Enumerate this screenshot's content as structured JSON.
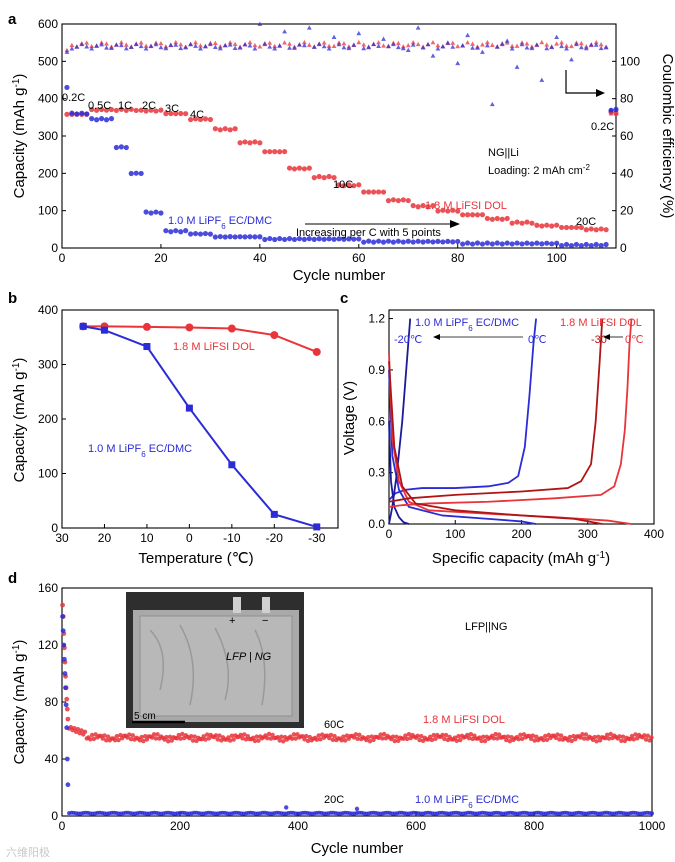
{
  "figure": {
    "watermark": "六维阳极",
    "panels": [
      {
        "label": "a",
        "chart_data": {
          "type": "scatter",
          "xlabel": "Cycle number",
          "ylabel": "Capacity (mAh g⁻¹)",
          "ylabel_base": "Capacity (mAh g",
          "ylabel_sup": "-1",
          "ylabel_end": ")",
          "y2label": "Coulombic efficiency (%)",
          "xlim": [
            0,
            112
          ],
          "ylim": [
            0,
            600
          ],
          "y2lim": [
            0,
            120
          ],
          "xticks": [
            0,
            20,
            40,
            60,
            80,
            100
          ],
          "yticks": [
            0,
            100,
            200,
            300,
            400,
            500,
            600
          ],
          "y2ticks": [
            0,
            20,
            40,
            60,
            80,
            100
          ],
          "rate_labels": [
            "0.2C",
            "0.5C",
            "1C",
            "2C",
            "3C",
            "4C",
            "10C",
            "20C",
            "0.2C"
          ],
          "cell_label": "NG||Li",
          "loading_label": "Loading: 2 mAh cm",
          "loading_sup": "-2",
          "arrow_label": "Increasing per C with 5 points",
          "series": [
            {
              "name": "1.8 M LiFSI DOL",
              "color": "#e8343a",
              "axis": "capacity",
              "steps": [
                [
                  1,
                  5,
                  358
                ],
                [
                  6,
                  10,
                  370
                ],
                [
                  11,
                  15,
                  370
                ],
                [
                  16,
                  20,
                  368
                ],
                [
                  21,
                  25,
                  360
                ],
                [
                  26,
                  30,
                  345
                ],
                [
                  31,
                  35,
                  318
                ],
                [
                  36,
                  40,
                  283
                ],
                [
                  41,
                  45,
                  258
                ],
                [
                  46,
                  50,
                  213
                ],
                [
                  51,
                  55,
                  190
                ],
                [
                  56,
                  60,
                  168
                ],
                [
                  61,
                  65,
                  150
                ],
                [
                  66,
                  70,
                  128
                ],
                [
                  71,
                  75,
                  112
                ],
                [
                  76,
                  80,
                  100
                ],
                [
                  81,
                  85,
                  89
                ],
                [
                  86,
                  90,
                  78
                ],
                [
                  91,
                  95,
                  68
                ],
                [
                  96,
                  100,
                  60
                ],
                [
                  101,
                  105,
                  55
                ],
                [
                  106,
                  110,
                  50
                ],
                [
                  111,
                  112,
                  362
                ]
              ]
            },
            {
              "name": "1.0 M LiPF6 EC/DMC",
              "name_base": "1.0 M LiPF",
              "name_sub": "6",
              "name_end": " EC/DMC",
              "color": "#2b2bd8",
              "axis": "capacity",
              "steps": [
                [
                  1,
                  1,
                  430
                ],
                [
                  2,
                  5,
                  360
                ],
                [
                  6,
                  10,
                  345
                ],
                [
                  11,
                  13,
                  270
                ],
                [
                  14,
                  16,
                  200
                ],
                [
                  17,
                  20,
                  95
                ],
                [
                  21,
                  25,
                  45
                ],
                [
                  26,
                  30,
                  38
                ],
                [
                  31,
                  40,
                  30
                ],
                [
                  41,
                  60,
                  24
                ],
                [
                  61,
                  80,
                  17
                ],
                [
                  81,
                  100,
                  12
                ],
                [
                  101,
                  110,
                  8
                ],
                [
                  111,
                  112,
                  370
                ]
              ]
            },
            {
              "name": "1.8 M LiFSI DOL CE",
              "color": "#e8343a",
              "axis": "efficiency",
              "baseline": 109
            },
            {
              "name": "1.0 M LiPF6 EC/DMC CE",
              "color": "#2b2bd8",
              "axis": "efficiency",
              "baseline": 108,
              "outliers": [
                [
                  40,
                  120
                ],
                [
                  45,
                  116
                ],
                [
                  50,
                  118
                ],
                [
                  55,
                  113
                ],
                [
                  60,
                  115
                ],
                [
                  65,
                  112
                ],
                [
                  70,
                  106
                ],
                [
                  72,
                  118
                ],
                [
                  75,
                  103
                ],
                [
                  78,
                  110
                ],
                [
                  80,
                  99
                ],
                [
                  82,
                  114
                ],
                [
                  85,
                  105
                ],
                [
                  87,
                  77
                ],
                [
                  90,
                  111
                ],
                [
                  92,
                  97
                ],
                [
                  95,
                  107
                ],
                [
                  97,
                  90
                ],
                [
                  100,
                  113
                ],
                [
                  103,
                  101
                ],
                [
                  107,
                  109
                ]
              ]
            }
          ]
        }
      },
      {
        "label": "b",
        "chart_data": {
          "type": "line",
          "xlabel": "Temperature (℃)",
          "ylabel": "Capacity (mAh g⁻¹)",
          "ylabel_base": "Capacity (mAh g",
          "ylabel_sup": "-1",
          "ylabel_end": ")",
          "xlim": [
            30,
            -35
          ],
          "ylim": [
            0,
            400
          ],
          "xticks": [
            30,
            20,
            10,
            0,
            -10,
            -20,
            -30
          ],
          "yticks": [
            0,
            100,
            200,
            300,
            400
          ],
          "x": [
            25,
            20,
            10,
            0,
            -10,
            -20,
            -30
          ],
          "series": [
            {
              "name": "1.8 M LiFSI DOL",
              "color": "#e8343a",
              "values": [
                370,
                370,
                369,
                368,
                366,
                354,
                323
              ]
            },
            {
              "name": "1.0 M LiPF6 EC/DMC",
              "name_base": "1.0 M LiPF",
              "name_sub": "6",
              "name_end": " EC/DMC",
              "color": "#2b2bd8",
              "values": [
                370,
                363,
                333,
                220,
                116,
                25,
                2
              ]
            }
          ]
        }
      },
      {
        "label": "c",
        "chart_data": {
          "type": "line",
          "xlabel": "Specific capacity (mAh g⁻¹)",
          "xlabel_base": "Specific capacity (mAh g",
          "xlabel_sup": "-1",
          "xlabel_end": ")",
          "ylabel": "Voltage (V)",
          "xlim": [
            0,
            400
          ],
          "ylim": [
            0,
            1.25
          ],
          "xticks": [
            0,
            100,
            200,
            300,
            400
          ],
          "yticks": [
            0.0,
            0.3,
            0.6,
            0.9,
            1.2
          ],
          "legend": [
            {
              "name": "1.0 M LiPF6 EC/DMC",
              "name_base": "1.0 M LiPF",
              "name_sub": "6",
              "name_end": " EC/DMC",
              "color": "#2b2bd8"
            },
            {
              "name": "1.8 M LiFSI DOL",
              "color": "#e8343a"
            }
          ],
          "temperature_labels": [
            {
              "text": "-20℃",
              "color": "#2b2bd8"
            },
            {
              "text": "0℃",
              "color": "#2b2bd8"
            },
            {
              "text": "-30",
              "color": "#b01515"
            },
            {
              "text": "0℃",
              "color": "#e8343a"
            }
          ],
          "series": [
            {
              "name": "LiPF6 0℃ charge",
              "color": "#2b2bd8",
              "x": [
                0,
                10,
                25,
                50,
                100,
                150,
                180,
                195,
                205,
                212,
                218,
                222
              ],
              "y": [
                0.14,
                0.18,
                0.2,
                0.21,
                0.21,
                0.22,
                0.24,
                0.28,
                0.45,
                0.75,
                1.05,
                1.2
              ]
            },
            {
              "name": "LiPF6 0℃ discharge",
              "color": "#2b2bd8",
              "x": [
                0,
                5,
                15,
                30,
                80,
                150,
                200,
                222
              ],
              "y": [
                0.9,
                0.4,
                0.2,
                0.1,
                0.05,
                0.03,
                0.015,
                0.0
              ]
            },
            {
              "name": "LiPF6 -20℃ charge",
              "color": "#1a1a9a",
              "x": [
                0,
                5,
                12,
                20,
                25,
                28,
                32
              ],
              "y": [
                0.0,
                0.1,
                0.3,
                0.6,
                0.85,
                1.0,
                1.2
              ]
            },
            {
              "name": "LiPF6 -20℃ discharge",
              "color": "#1a1a9a",
              "x": [
                0,
                3,
                8,
                15,
                22,
                30
              ],
              "y": [
                0.6,
                0.25,
                0.1,
                0.04,
                0.01,
                0.0
              ]
            },
            {
              "name": "LiFSI 0℃ charge",
              "color": "#e8343a",
              "x": [
                0,
                20,
                60,
                150,
                250,
                320,
                340,
                350,
                356,
                360,
                363,
                366
              ],
              "y": [
                0.1,
                0.11,
                0.12,
                0.13,
                0.15,
                0.17,
                0.22,
                0.35,
                0.55,
                0.8,
                1.05,
                1.2
              ]
            },
            {
              "name": "LiFSI 0℃ discharge",
              "color": "#e8343a",
              "x": [
                0,
                5,
                15,
                30,
                60,
                150,
                250,
                330,
                366
              ],
              "y": [
                1.0,
                0.5,
                0.25,
                0.13,
                0.08,
                0.06,
                0.04,
                0.02,
                0.0
              ]
            },
            {
              "name": "LiFSI -30℃ charge",
              "color": "#b01515",
              "x": [
                0,
                30,
                100,
                200,
                270,
                290,
                305,
                312,
                318,
                322
              ],
              "y": [
                0.13,
                0.15,
                0.17,
                0.19,
                0.21,
                0.25,
                0.35,
                0.6,
                0.95,
                1.2
              ]
            },
            {
              "name": "LiFSI -30℃ discharge",
              "color": "#b01515",
              "x": [
                0,
                8,
                20,
                40,
                100,
                200,
                280,
                322
              ],
              "y": [
                0.95,
                0.45,
                0.22,
                0.12,
                0.08,
                0.05,
                0.03,
                0.0
              ]
            }
          ]
        }
      },
      {
        "label": "d",
        "chart_data": {
          "type": "scatter",
          "xlabel": "Cycle number",
          "ylabel": "Capacity (mAh g⁻¹)",
          "ylabel_base": "Capacity (mAh g",
          "ylabel_sup": "-1",
          "ylabel_end": ")",
          "xlim": [
            0,
            1000
          ],
          "ylim": [
            0,
            160
          ],
          "xticks": [
            0,
            200,
            400,
            600,
            800,
            1000
          ],
          "yticks": [
            0,
            40,
            80,
            120,
            160
          ],
          "cell_label": "LFP||NG",
          "rate_labels": [
            "60C",
            "20C"
          ],
          "inset": {
            "scale_bar": "5 cm",
            "plus_sign": "+",
            "minus_sign": "−",
            "handwriting": "LFP | NG"
          },
          "series": [
            {
              "name": "1.8 M LiFSI DOL",
              "color": "#e8343a",
              "initial": [
                [
                  1,
                  148
                ],
                [
                  2,
                  140
                ],
                [
                  3,
                  128
                ],
                [
                  4,
                  118
                ],
                [
                  5,
                  108
                ],
                [
                  6,
                  98
                ],
                [
                  7,
                  90
                ],
                [
                  8,
                  82
                ],
                [
                  9,
                  75
                ],
                [
                  10,
                  68
                ]
              ],
              "plateau_start": 62,
              "plateau_mean": 55
            },
            {
              "name": "1.0 M LiPF6 EC/DMC",
              "name_base": "1.0 M LiPF",
              "name_sub": "6",
              "name_end": " EC/DMC",
              "color": "#2b2bd8",
              "initial": [
                [
                  1,
                  140
                ],
                [
                  2,
                  130
                ],
                [
                  3,
                  120
                ],
                [
                  4,
                  110
                ],
                [
                  5,
                  100
                ],
                [
                  6,
                  90
                ],
                [
                  7,
                  78
                ],
                [
                  8,
                  62
                ],
                [
                  9,
                  40
                ],
                [
                  10,
                  22
                ]
              ],
              "plateau_mean": 2,
              "outliers": [
                [
                  380,
                  6
                ],
                [
                  500,
                  5
                ]
              ]
            }
          ]
        }
      }
    ]
  }
}
